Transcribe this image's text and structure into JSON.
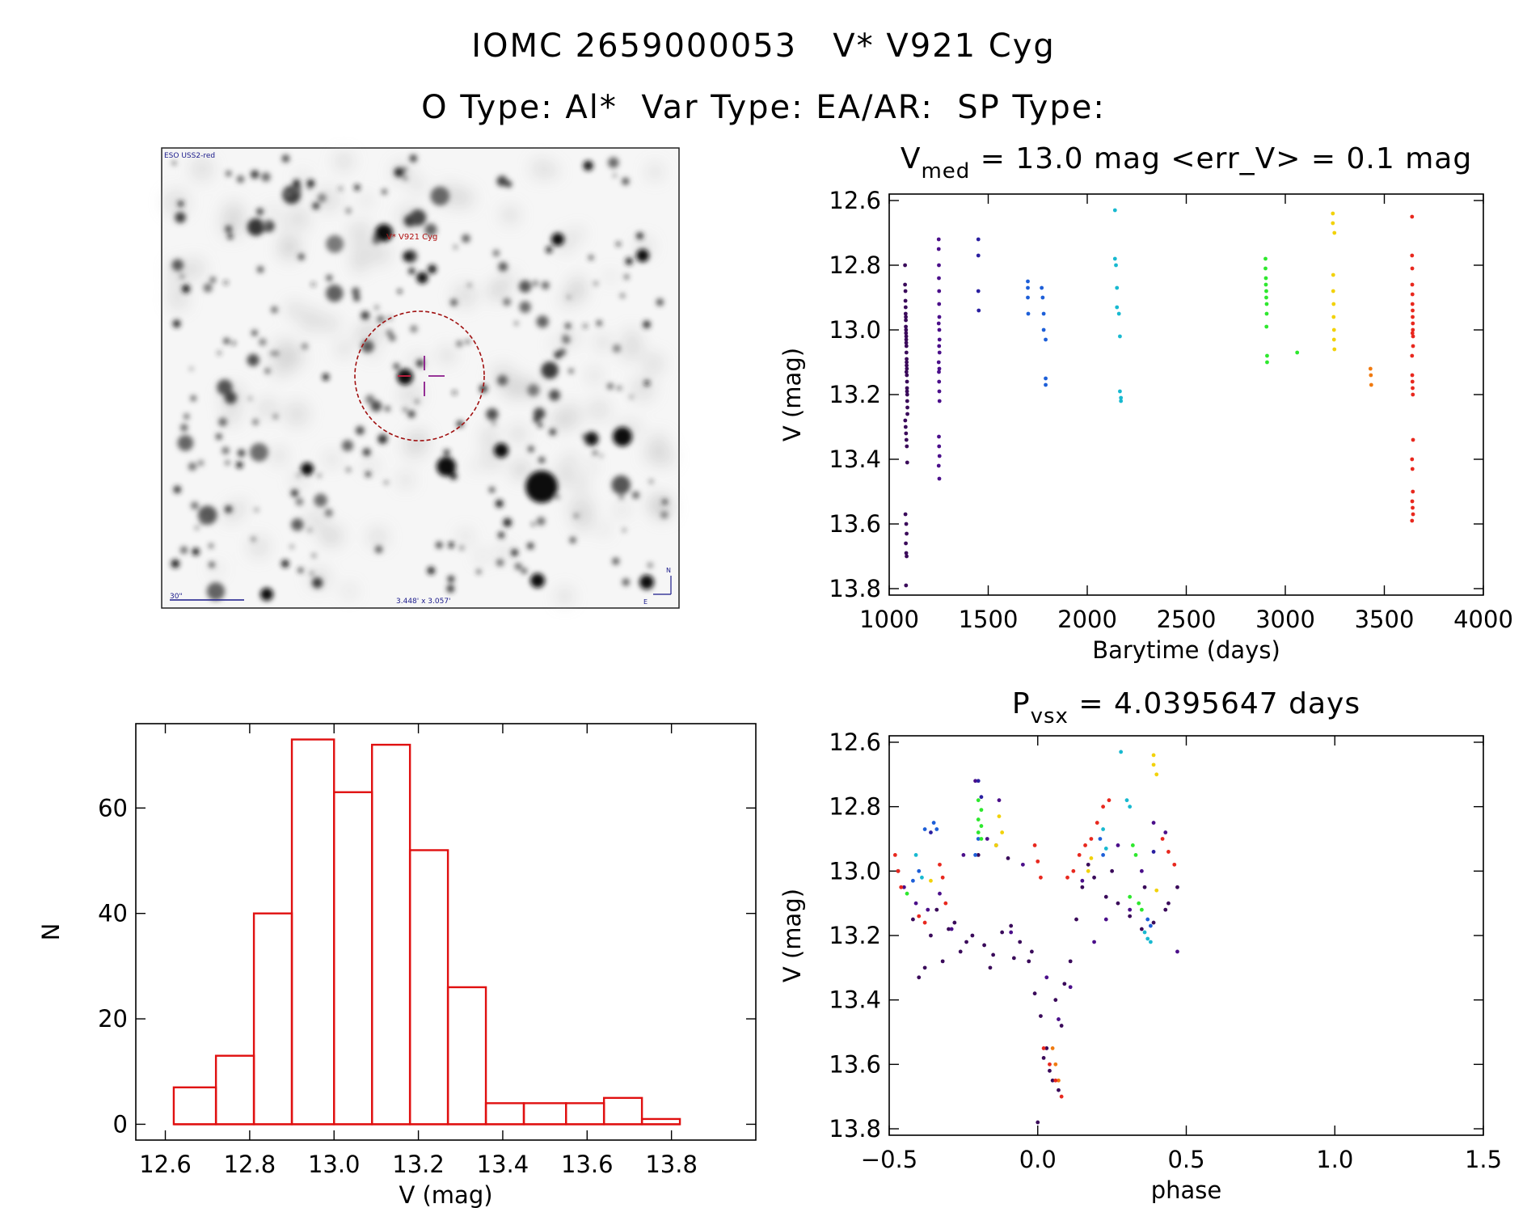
{
  "title": {
    "line1": "IOMC 2659000053   V* V921 Cyg",
    "line2": "O Type: Al*  Var Type: EA/AR:  SP Type:"
  },
  "finder_chart": {
    "survey_label": "ESO USS2-red",
    "object_label": "V* V921 Cyg",
    "scale_label": "30\"",
    "size_label": "3.448' x 3.057'",
    "north_label": "N",
    "east_label": "E"
  },
  "chart_data": [
    {
      "id": "light-curve",
      "type": "scatter",
      "title_main": "V",
      "title_sub": "med",
      "title_rest": " = 13.0 mag <err_V> = 0.1 mag",
      "xlabel": "Barytime (days)",
      "ylabel": "V (mag)",
      "xlim": [
        1000,
        4000
      ],
      "ylim": [
        13.82,
        12.58
      ],
      "xticks": [
        1000,
        1500,
        2000,
        2500,
        3000,
        3500,
        4000
      ],
      "yticks": [
        12.6,
        12.8,
        13.0,
        13.2,
        13.4,
        13.6,
        13.8
      ],
      "series": [
        {
          "name": "season-1",
          "color": "#3a0a5a",
          "x": [
            1080,
            1080,
            1082,
            1082,
            1083,
            1083,
            1084,
            1084,
            1085,
            1085,
            1086,
            1086,
            1087,
            1087,
            1088,
            1088,
            1089,
            1089,
            1090,
            1090,
            1091,
            1091,
            1092,
            1092,
            1081,
            1083,
            1085,
            1087,
            1089,
            1091,
            1084,
            1086,
            1088,
            1090,
            1082,
            1086,
            1088,
            1084,
            1086,
            1088,
            1085,
            1087
          ],
          "y": [
            12.8,
            12.86,
            12.88,
            12.91,
            12.93,
            12.95,
            12.97,
            12.99,
            13.0,
            13.01,
            13.02,
            13.04,
            13.05,
            13.07,
            13.09,
            13.1,
            13.12,
            13.14,
            13.16,
            13.18,
            13.2,
            13.22,
            13.24,
            13.26,
            13.28,
            13.3,
            13.32,
            13.34,
            13.36,
            13.41,
            12.96,
            13.03,
            13.11,
            13.19,
            13.57,
            13.6,
            13.63,
            13.66,
            13.69,
            13.7,
            13.79,
            13.13
          ]
        },
        {
          "name": "season-2",
          "color": "#4b0f8a",
          "x": [
            1250,
            1250,
            1251,
            1251,
            1252,
            1252,
            1253,
            1253,
            1254,
            1254,
            1250,
            1251,
            1252,
            1253,
            1254,
            1250,
            1252,
            1253,
            1251,
            1252,
            1254,
            1250,
            1253
          ],
          "y": [
            12.72,
            12.75,
            12.8,
            12.84,
            12.88,
            12.92,
            12.96,
            13.0,
            13.03,
            13.07,
            13.1,
            13.13,
            13.16,
            13.19,
            13.22,
            12.98,
            13.05,
            13.12,
            13.33,
            13.36,
            13.39,
            13.42,
            13.46
          ]
        },
        {
          "name": "season-3",
          "color": "#2a1fa0",
          "x": [
            1450,
            1450,
            1450,
            1452
          ],
          "y": [
            12.72,
            12.77,
            12.88,
            12.94
          ]
        },
        {
          "name": "season-4",
          "color": "#1d5fd8",
          "x": [
            1700,
            1700,
            1700,
            1702,
            1770,
            1775,
            1780,
            1780,
            1790,
            1790,
            1790
          ],
          "y": [
            12.85,
            12.87,
            12.9,
            12.95,
            12.87,
            12.9,
            12.95,
            13.0,
            13.03,
            13.15,
            13.17
          ]
        },
        {
          "name": "season-5",
          "color": "#18b9d0",
          "x": [
            2140,
            2140,
            2145,
            2150,
            2150,
            2160,
            2165,
            2165,
            2170,
            2170
          ],
          "y": [
            12.63,
            12.78,
            12.8,
            12.87,
            12.93,
            12.95,
            13.02,
            13.19,
            13.21,
            13.22
          ]
        },
        {
          "name": "season-6",
          "color": "#2ee82e",
          "x": [
            2900,
            2900,
            2902,
            2902,
            2904,
            2904,
            2906,
            2906,
            2908,
            2908,
            2905,
            3060
          ],
          "y": [
            12.78,
            12.81,
            12.84,
            12.86,
            12.88,
            12.9,
            12.92,
            12.95,
            13.08,
            13.1,
            12.99,
            13.07
          ]
        },
        {
          "name": "season-7",
          "color": "#f2d20a",
          "x": [
            3240,
            3240,
            3242,
            3242,
            3244,
            3244,
            3246,
            3246,
            3248,
            3248
          ],
          "y": [
            12.64,
            12.67,
            12.83,
            12.88,
            12.92,
            12.96,
            13.0,
            13.03,
            13.06,
            12.7
          ]
        },
        {
          "name": "season-8",
          "color": "#f07a10",
          "x": [
            3430,
            3432,
            3434
          ],
          "y": [
            13.12,
            13.14,
            13.17
          ]
        },
        {
          "name": "season-9",
          "color": "#e8281e",
          "x": [
            3640,
            3640,
            3641,
            3641,
            3642,
            3642,
            3643,
            3643,
            3644,
            3644,
            3645,
            3645,
            3640,
            3641,
            3642,
            3643,
            3644,
            3645,
            3640,
            3642,
            3644,
            3641,
            3643,
            3645,
            3640,
            3642
          ],
          "y": [
            12.65,
            12.77,
            12.81,
            12.86,
            12.89,
            12.92,
            12.94,
            12.96,
            12.98,
            13.0,
            13.02,
            13.05,
            13.08,
            13.14,
            13.16,
            13.18,
            13.2,
            13.34,
            13.4,
            13.43,
            13.5,
            13.53,
            13.55,
            13.57,
            13.59,
            13.01
          ]
        }
      ]
    },
    {
      "id": "histogram",
      "type": "bar",
      "xlabel": "V (mag)",
      "ylabel": "N",
      "xlim": [
        12.53,
        14.0
      ],
      "ylim": [
        -3,
        76
      ],
      "xticks": [
        12.6,
        12.8,
        13.0,
        13.2,
        13.4,
        13.6,
        13.8
      ],
      "yticks": [
        0,
        20,
        40,
        60
      ],
      "bin_edges": [
        12.62,
        12.72,
        12.81,
        12.9,
        13.0,
        13.09,
        13.18,
        13.27,
        13.36,
        13.45,
        13.55,
        13.64,
        13.73,
        13.82
      ],
      "values": [
        7,
        13,
        40,
        73,
        63,
        72,
        52,
        26,
        4,
        4,
        4,
        5,
        1
      ]
    },
    {
      "id": "phased-curve",
      "type": "scatter",
      "title_main": "P",
      "title_sub": "vsx",
      "title_rest": " = 4.0395647 days",
      "xlabel": "phase",
      "ylabel": "V (mag)",
      "xlim": [
        -0.5,
        1.5
      ],
      "ylim": [
        13.82,
        12.58
      ],
      "xticks": [
        -0.5,
        0.0,
        0.5,
        1.0,
        1.5
      ],
      "yticks": [
        12.6,
        12.8,
        13.0,
        13.2,
        13.4,
        13.6,
        13.8
      ],
      "series": [
        {
          "name": "season-1",
          "color": "#3a0a5a",
          "x": [
            -0.47,
            -0.42,
            -0.38,
            -0.34,
            -0.3,
            -0.26,
            -0.22,
            -0.18,
            -0.15,
            -0.12,
            -0.09,
            -0.06,
            -0.03,
            -0.01,
            0.01,
            0.03,
            0.05,
            0.07,
            0.09,
            0.11,
            0.13,
            0.15,
            0.17,
            0.19,
            0.23,
            0.27,
            0.31,
            0.35,
            0.39,
            0.43,
            0.47,
            -0.4,
            -0.32,
            -0.24,
            -0.16,
            -0.08,
            0.0,
            0.04,
            0.08,
            -0.02,
            0.02,
            0.06,
            -0.36,
            -0.28,
            -0.2,
            -0.14,
            -0.1,
            0.36,
            0.44,
            0.25
          ],
          "y": [
            13.0,
            13.15,
            13.3,
            13.12,
            13.18,
            13.25,
            13.2,
            13.23,
            13.26,
            13.19,
            13.17,
            13.22,
            13.28,
            13.38,
            13.45,
            13.55,
            13.65,
            13.68,
            13.35,
            13.28,
            13.15,
            13.05,
            12.98,
            13.02,
            13.08,
            13.1,
            13.14,
            13.18,
            13.16,
            13.12,
            13.05,
            13.33,
            13.28,
            13.22,
            13.3,
            13.27,
            13.78,
            13.62,
            13.48,
            13.25,
            13.58,
            13.4,
            13.2,
            13.16,
            12.95,
            12.92,
            12.96,
            13.05,
            13.1,
            13.0
          ]
        },
        {
          "name": "season-2",
          "color": "#4b0f8a",
          "x": [
            -0.45,
            -0.37,
            -0.29,
            -0.21,
            -0.13,
            -0.05,
            0.03,
            0.11,
            0.19,
            0.27,
            0.35,
            0.43,
            -0.41,
            -0.25,
            -0.09,
            0.07,
            0.23,
            0.39,
            -0.33,
            -0.17,
            0.15,
            0.31,
            0.47
          ],
          "y": [
            13.05,
            13.12,
            13.18,
            12.72,
            12.78,
            12.98,
            13.33,
            13.36,
            13.22,
            12.92,
            13.0,
            12.88,
            13.1,
            12.95,
            13.19,
            13.46,
            13.15,
            12.85,
            13.07,
            12.9,
            13.03,
            13.12,
            13.25
          ]
        },
        {
          "name": "season-3",
          "color": "#2a1fa0",
          "x": [
            -0.2,
            -0.19,
            -0.36,
            0.39
          ],
          "y": [
            12.72,
            12.77,
            12.88,
            12.94
          ]
        },
        {
          "name": "season-4",
          "color": "#1d5fd8",
          "x": [
            -0.35,
            -0.34,
            -0.2,
            -0.21,
            -0.42,
            0.21,
            0.22,
            -0.4,
            0.37,
            0.38,
            -0.38
          ],
          "y": [
            12.85,
            12.87,
            12.9,
            12.95,
            13.03,
            12.9,
            12.95,
            13.0,
            13.15,
            13.17,
            12.87
          ]
        },
        {
          "name": "season-5",
          "color": "#18b9d0",
          "x": [
            0.28,
            0.3,
            0.31,
            0.22,
            0.23,
            -0.41,
            -0.39,
            0.36,
            0.37,
            0.38
          ],
          "y": [
            12.63,
            12.78,
            12.8,
            12.87,
            12.93,
            12.95,
            13.02,
            13.19,
            13.21,
            13.22
          ]
        },
        {
          "name": "season-6",
          "color": "#2ee82e",
          "x": [
            -0.2,
            -0.19,
            -0.2,
            -0.19,
            -0.2,
            -0.19,
            0.32,
            0.33,
            0.31,
            0.34,
            0.35,
            -0.44
          ],
          "y": [
            12.78,
            12.81,
            12.84,
            12.86,
            12.88,
            12.9,
            12.92,
            12.95,
            13.08,
            13.1,
            13.12,
            13.07
          ]
        },
        {
          "name": "season-7",
          "color": "#f2d20a",
          "x": [
            0.39,
            0.39,
            0.4,
            -0.13,
            -0.12,
            -0.14,
            0.18,
            0.17,
            -0.36,
            0.4
          ],
          "y": [
            12.64,
            12.67,
            12.7,
            12.83,
            12.88,
            12.92,
            12.96,
            13.0,
            13.03,
            13.06
          ]
        },
        {
          "name": "season-8",
          "color": "#f07a10",
          "x": [
            0.05,
            0.06,
            0.07
          ],
          "y": [
            13.55,
            13.6,
            13.65
          ]
        },
        {
          "name": "season-9",
          "color": "#e8281e",
          "x": [
            -0.48,
            -0.47,
            -0.46,
            -0.33,
            -0.32,
            -0.31,
            -0.01,
            0.0,
            0.01,
            0.02,
            0.04,
            0.06,
            0.08,
            0.1,
            0.12,
            0.14,
            0.16,
            0.18,
            0.2,
            0.22,
            0.24,
            0.42,
            0.44,
            0.46,
            -0.4,
            -0.38
          ],
          "y": [
            12.95,
            13.0,
            13.05,
            12.98,
            13.02,
            13.1,
            12.92,
            12.97,
            13.02,
            13.55,
            13.6,
            13.65,
            13.7,
            13.02,
            13.0,
            12.95,
            12.92,
            12.9,
            12.85,
            12.8,
            12.78,
            12.9,
            12.94,
            12.98,
            13.14,
            13.16
          ]
        }
      ]
    }
  ]
}
